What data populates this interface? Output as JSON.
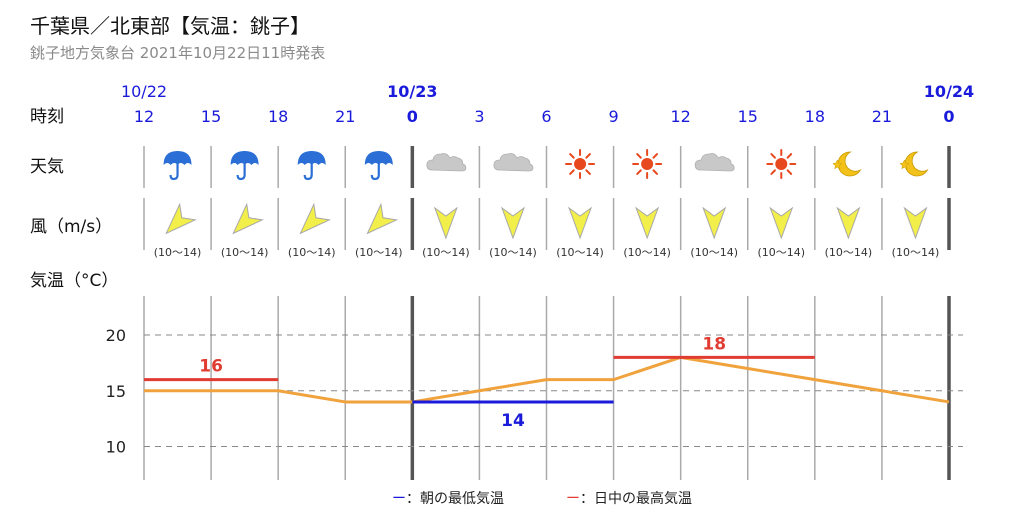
{
  "header": {
    "title": "千葉県／北東部【気温：銚子】",
    "subtitle": "銚子地方気象台 2021年10月22日11時発表"
  },
  "row_labels": {
    "time": "時刻",
    "weather": "天気",
    "wind": "風（m/s）",
    "temperature": "気温（°C）"
  },
  "dates": [
    {
      "label": "10/22",
      "hour_index": 0,
      "bold": false
    },
    {
      "label": "10/23",
      "hour_index": 4,
      "bold": true
    },
    {
      "label": "10/24",
      "hour_index": 12,
      "bold": true
    }
  ],
  "hours": [
    "12",
    "15",
    "18",
    "21",
    "0",
    "3",
    "6",
    "9",
    "12",
    "15",
    "18",
    "21",
    "0"
  ],
  "bold_hours": [
    4,
    12
  ],
  "weather_icons": [
    "umbrella-icon",
    "umbrella-icon",
    "umbrella-icon",
    "umbrella-icon",
    "cloud-icon",
    "cloud-icon",
    "sun-icon",
    "sun-icon",
    "cloud-icon",
    "sun-icon",
    "moon-star-icon",
    "moon-star-icon"
  ],
  "wind": {
    "directions": [
      "sw",
      "sw",
      "sw",
      "sw",
      "n",
      "n",
      "n",
      "n",
      "n",
      "n",
      "n",
      "n"
    ],
    "speeds": [
      "(10～14)",
      "(10～14)",
      "(10～14)",
      "(10～14)",
      "(10～14)",
      "(10～14)",
      "(10～14)",
      "(10～14)",
      "(10～14)",
      "(10～14)",
      "(10～14)",
      "(10～14)"
    ]
  },
  "colors": {
    "temp_line": "#f0a23c",
    "max_line": "#e03c32",
    "min_line": "#1a1adb",
    "grid": "#888888",
    "sun": "#e8481e",
    "umbrella": "#2b6fd6",
    "cloud": "#c8c8c8",
    "moon": "#f2c21a",
    "arrow_fill": "#f2ee4a"
  },
  "chart_data": {
    "type": "line",
    "x": [
      "12",
      "15",
      "18",
      "21",
      "0",
      "3",
      "6",
      "9",
      "12",
      "15",
      "18",
      "21",
      "0"
    ],
    "series": [
      {
        "values": [
          15,
          15,
          15,
          14,
          14,
          15,
          16,
          16,
          18,
          17,
          16,
          15,
          14
        ]
      }
    ],
    "yticks": [
      10,
      15,
      20
    ],
    "ylim": [
      7,
      23.5
    ],
    "max_temps": [
      {
        "value": 16,
        "label": "16",
        "start_index": 0,
        "end_index": 2
      },
      {
        "value": 18,
        "label": "18",
        "start_index": 7,
        "end_index": 10
      }
    ],
    "min_temps": [
      {
        "value": 14,
        "label": "14",
        "start_index": 4,
        "end_index": 7
      }
    ],
    "grid": true
  },
  "legend": {
    "min": {
      "mark": "ー",
      "text": "：朝の最低気温"
    },
    "max": {
      "mark": "ー",
      "text": "：日中の最高気温"
    }
  }
}
